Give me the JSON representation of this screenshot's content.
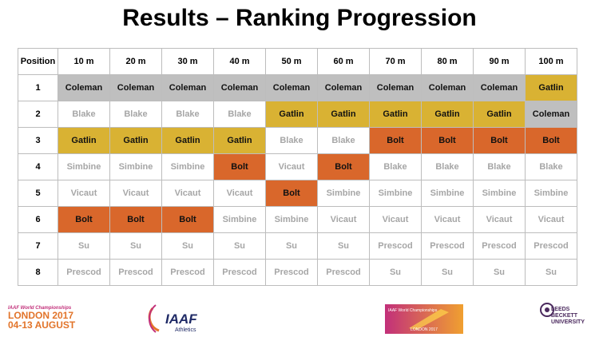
{
  "title": "Results – Ranking Progression",
  "table": {
    "header": [
      "Position",
      "10 m",
      "20 m",
      "30 m",
      "40 m",
      "50 m",
      "60 m",
      "70 m",
      "80 m",
      "90 m",
      "100 m"
    ],
    "rows": [
      [
        "1",
        "Coleman",
        "Coleman",
        "Coleman",
        "Coleman",
        "Coleman",
        "Coleman",
        "Coleman",
        "Coleman",
        "Coleman",
        "Gatlin"
      ],
      [
        "2",
        "Blake",
        "Blake",
        "Blake",
        "Blake",
        "Gatlin",
        "Gatlin",
        "Gatlin",
        "Gatlin",
        "Gatlin",
        "Coleman"
      ],
      [
        "3",
        "Gatlin",
        "Gatlin",
        "Gatlin",
        "Gatlin",
        "Blake",
        "Blake",
        "Bolt",
        "Bolt",
        "Bolt",
        "Bolt"
      ],
      [
        "4",
        "Simbine",
        "Simbine",
        "Simbine",
        "Bolt",
        "Vicaut",
        "Bolt",
        "Blake",
        "Blake",
        "Blake",
        "Blake"
      ],
      [
        "5",
        "Vicaut",
        "Vicaut",
        "Vicaut",
        "Vicaut",
        "Bolt",
        "Simbine",
        "Simbine",
        "Simbine",
        "Simbine",
        "Simbine"
      ],
      [
        "6",
        "Bolt",
        "Bolt",
        "Bolt",
        "Simbine",
        "Simbine",
        "Vicaut",
        "Vicaut",
        "Vicaut",
        "Vicaut",
        "Vicaut"
      ],
      [
        "7",
        "Su",
        "Su",
        "Su",
        "Su",
        "Su",
        "Su",
        "Prescod",
        "Prescod",
        "Prescod",
        "Prescod"
      ],
      [
        "8",
        "Prescod",
        "Prescod",
        "Prescod",
        "Prescod",
        "Prescod",
        "Prescod",
        "Su",
        "Su",
        "Su",
        "Su"
      ]
    ],
    "highlights": [
      {
        "athlete": "Coleman",
        "color": "#bfbfbf"
      },
      {
        "athlete": "Gatlin",
        "color": "#d9b233"
      },
      {
        "athlete": "Bolt",
        "color": "#d9672b"
      }
    ]
  },
  "footer": {
    "event": {
      "line1": "IAAF World Championships",
      "line2": "LONDON 2017",
      "line3": "04-13 AUGUST"
    },
    "iaaf": {
      "name": "IAAF",
      "sub": "Athletics"
    },
    "poster": {
      "name": "IAAF World Championships",
      "sub": "LONDON 2017"
    },
    "university": {
      "line1": "LEEDS",
      "line2": "BECKETT",
      "line3": "UNIVERSITY"
    }
  }
}
